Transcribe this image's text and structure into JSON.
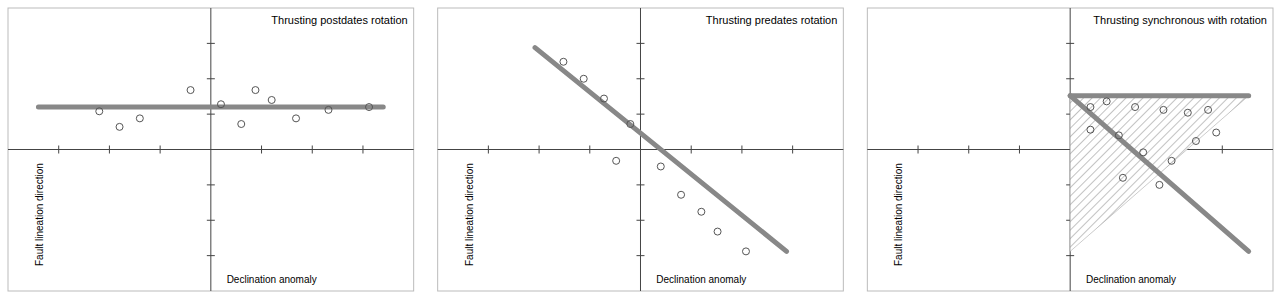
{
  "chart_data": [
    {
      "type": "scatter",
      "title": "Thrusting postdates rotation",
      "x_label": "Declination anomaly",
      "y_label": "Fault lineation direction",
      "xlim": [
        -1,
        1
      ],
      "ylim": [
        -1,
        1
      ],
      "xticks": [
        -0.75,
        -0.5,
        -0.25,
        0.25,
        0.5,
        0.75
      ],
      "yticks": [
        -0.75,
        -0.5,
        -0.25,
        0.25,
        0.5,
        0.75
      ],
      "tick_labels": false,
      "series": [
        {
          "type": "line",
          "color": "#888888",
          "x": [
            -0.85,
            0.85
          ],
          "values": [
            0.3,
            0.3
          ]
        },
        {
          "type": "scatter",
          "color": "#555555",
          "marker": "open-circle",
          "x": [
            -0.55,
            -0.45,
            -0.35,
            -0.1,
            0.05,
            0.15,
            0.22,
            0.3,
            0.42,
            0.58,
            0.78
          ],
          "values": [
            0.27,
            0.16,
            0.22,
            0.42,
            0.32,
            0.18,
            0.42,
            0.35,
            0.22,
            0.28,
            0.3
          ]
        }
      ]
    },
    {
      "type": "scatter",
      "title": "Thrusting predates rotation",
      "x_label": "Declination anomaly",
      "y_label": "Fault lineation direction",
      "xlim": [
        -1,
        1
      ],
      "ylim": [
        -1,
        1
      ],
      "xticks": [
        -0.75,
        -0.5,
        -0.25,
        0.25,
        0.5,
        0.75
      ],
      "yticks": [
        -0.75,
        -0.5,
        -0.25,
        0.25,
        0.5,
        0.75
      ],
      "tick_labels": false,
      "series": [
        {
          "type": "line",
          "color": "#888888",
          "x": [
            -0.52,
            0.72
          ],
          "values": [
            0.72,
            -0.72
          ]
        },
        {
          "type": "scatter",
          "color": "#555555",
          "marker": "open-circle",
          "x": [
            -0.38,
            -0.28,
            -0.18,
            -0.05,
            -0.12,
            0.1,
            0.2,
            0.3,
            0.38,
            0.52
          ],
          "values": [
            0.62,
            0.5,
            0.36,
            0.18,
            -0.08,
            -0.12,
            -0.32,
            -0.44,
            -0.58,
            -0.72
          ]
        }
      ]
    },
    {
      "type": "scatter",
      "title": "Thrusting synchronous with rotation",
      "x_label": "Declination anomaly",
      "y_label": "Fault lineation direction",
      "xlim": [
        -1,
        1
      ],
      "ylim": [
        -1,
        1
      ],
      "xticks": [
        -0.75,
        -0.5,
        -0.25,
        0.25,
        0.5,
        0.75
      ],
      "yticks": [
        -0.75,
        -0.5,
        -0.25,
        0.25,
        0.5,
        0.75
      ],
      "tick_labels": false,
      "series": [
        {
          "type": "polygon",
          "color": "#999999",
          "x": [
            0.0,
            0.88,
            0.0
          ],
          "values": [
            0.38,
            0.38,
            -0.72
          ]
        },
        {
          "type": "line",
          "color": "#888888",
          "x": [
            0.0,
            0.88
          ],
          "values": [
            0.38,
            0.38
          ]
        },
        {
          "type": "line",
          "color": "#888888",
          "x": [
            0.0,
            0.88
          ],
          "values": [
            0.38,
            -0.72
          ]
        },
        {
          "type": "scatter",
          "color": "#555555",
          "marker": "open-circle",
          "x": [
            0.1,
            0.18,
            0.32,
            0.46,
            0.58,
            0.68,
            0.1,
            0.24,
            0.36,
            0.5,
            0.62,
            0.72,
            0.26,
            0.44
          ],
          "values": [
            0.3,
            0.34,
            0.3,
            0.28,
            0.26,
            0.28,
            0.14,
            0.1,
            -0.02,
            -0.08,
            0.06,
            0.12,
            -0.2,
            -0.25
          ]
        }
      ]
    }
  ]
}
